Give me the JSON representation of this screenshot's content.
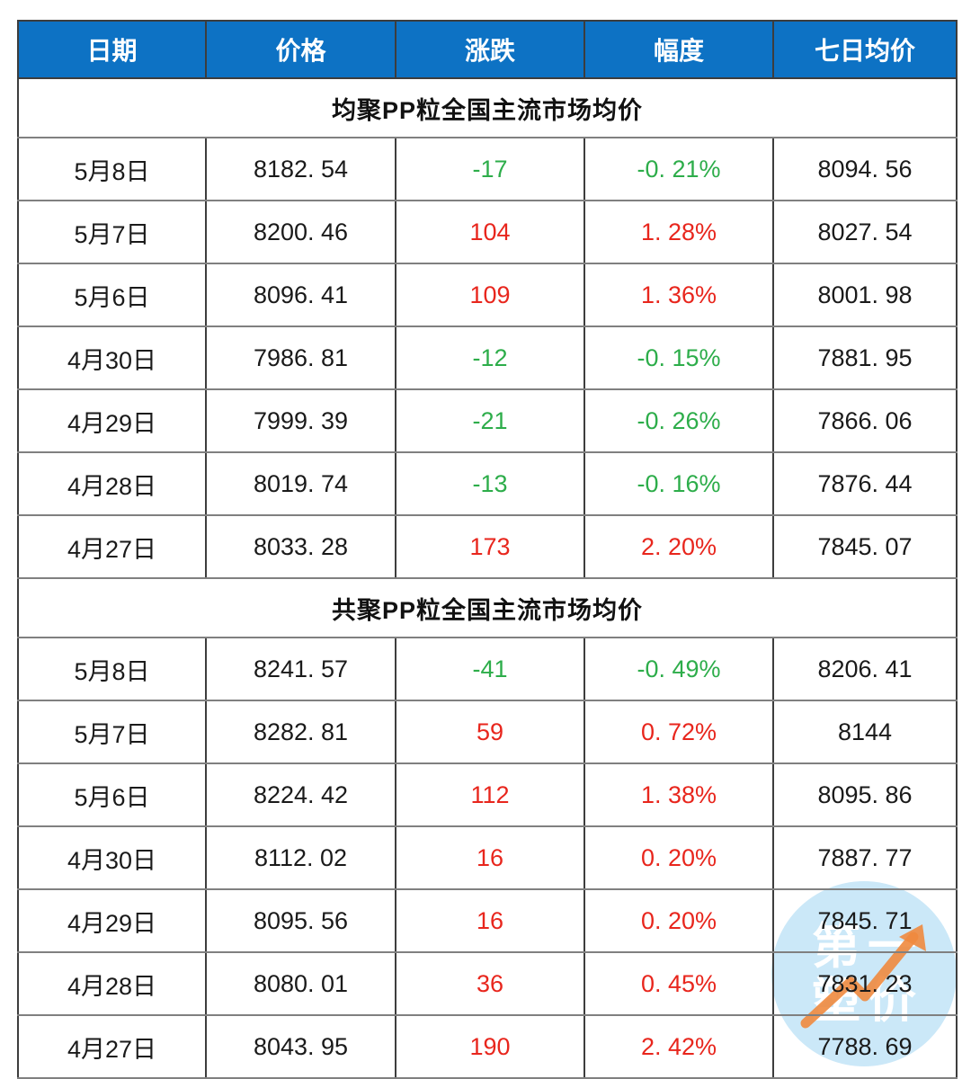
{
  "colors": {
    "header_bg": "#0d72c4",
    "up_red": "#e8261d",
    "down_green": "#2dad4a",
    "border_dark": "#3d3d3d",
    "border_gray": "#808080",
    "text": "#1a1a1a",
    "wm_bg": "#cbe8f8",
    "wm_arrow": "#f08a3e"
  },
  "watermark": {
    "line1": "第一",
    "line2": "塑价"
  },
  "table": {
    "columns": [
      "日期",
      "价格",
      "涨跌",
      "幅度",
      "七日均价"
    ],
    "sections": [
      {
        "title": "均聚PP粒全国主流市场均价",
        "rows": [
          {
            "date": "5月8日",
            "price": "8182. 54",
            "change": "-17",
            "pct": "-0. 21%",
            "avg7": "8094. 56"
          },
          {
            "date": "5月7日",
            "price": "8200. 46",
            "change": "104",
            "pct": "1. 28%",
            "avg7": "8027. 54"
          },
          {
            "date": "5月6日",
            "price": "8096. 41",
            "change": "109",
            "pct": "1. 36%",
            "avg7": "8001. 98"
          },
          {
            "date": "4月30日",
            "price": "7986. 81",
            "change": "-12",
            "pct": "-0. 15%",
            "avg7": "7881. 95"
          },
          {
            "date": "4月29日",
            "price": "7999. 39",
            "change": "-21",
            "pct": "-0. 26%",
            "avg7": "7866. 06"
          },
          {
            "date": "4月28日",
            "price": "8019. 74",
            "change": "-13",
            "pct": "-0. 16%",
            "avg7": "7876. 44"
          },
          {
            "date": "4月27日",
            "price": "8033. 28",
            "change": "173",
            "pct": "2. 20%",
            "avg7": "7845. 07"
          }
        ]
      },
      {
        "title": "共聚PP粒全国主流市场均价",
        "rows": [
          {
            "date": "5月8日",
            "price": "8241. 57",
            "change": "-41",
            "pct": "-0. 49%",
            "avg7": "8206. 41"
          },
          {
            "date": "5月7日",
            "price": "8282. 81",
            "change": "59",
            "pct": "0. 72%",
            "avg7": "8144"
          },
          {
            "date": "5月6日",
            "price": "8224. 42",
            "change": "112",
            "pct": "1. 38%",
            "avg7": "8095. 86"
          },
          {
            "date": "4月30日",
            "price": "8112. 02",
            "change": "16",
            "pct": "0. 20%",
            "avg7": "7887. 77"
          },
          {
            "date": "4月29日",
            "price": "8095. 56",
            "change": "16",
            "pct": "0. 20%",
            "avg7": "7845. 71"
          },
          {
            "date": "4月28日",
            "price": "8080. 01",
            "change": "36",
            "pct": "0. 45%",
            "avg7": "7831. 23"
          },
          {
            "date": "4月27日",
            "price": "8043. 95",
            "change": "190",
            "pct": "2. 42%",
            "avg7": "7788. 69"
          }
        ]
      }
    ]
  },
  "chart_data": {
    "type": "table",
    "columns": [
      "日期",
      "价格",
      "涨跌",
      "幅度",
      "七日均价"
    ],
    "sections": [
      {
        "title": "均聚PP粒全国主流市场均价",
        "rows": [
          [
            "5月8日",
            8182.54,
            -17,
            "-0.21%",
            8094.56
          ],
          [
            "5月7日",
            8200.46,
            104,
            "1.28%",
            8027.54
          ],
          [
            "5月6日",
            8096.41,
            109,
            "1.36%",
            8001.98
          ],
          [
            "4月30日",
            7986.81,
            -12,
            "-0.15%",
            7881.95
          ],
          [
            "4月29日",
            7999.39,
            -21,
            "-0.26%",
            7866.06
          ],
          [
            "4月28日",
            8019.74,
            -13,
            "-0.16%",
            7876.44
          ],
          [
            "4月27日",
            8033.28,
            173,
            "2.20%",
            7845.07
          ]
        ]
      },
      {
        "title": "共聚PP粒全国主流市场均价",
        "rows": [
          [
            "5月8日",
            8241.57,
            -41,
            "-0.49%",
            8206.41
          ],
          [
            "5月7日",
            8282.81,
            59,
            "0.72%",
            8144
          ],
          [
            "5月6日",
            8224.42,
            112,
            "1.38%",
            8095.86
          ],
          [
            "4月30日",
            8112.02,
            16,
            "0.20%",
            7887.77
          ],
          [
            "4月29日",
            8095.56,
            16,
            "0.20%",
            7845.71
          ],
          [
            "4月28日",
            8080.01,
            36,
            "0.45%",
            7831.23
          ],
          [
            "4月27日",
            8043.95,
            190,
            "2.42%",
            7788.69
          ]
        ]
      }
    ],
    "notes": "negative values rendered green, positive rendered red"
  }
}
